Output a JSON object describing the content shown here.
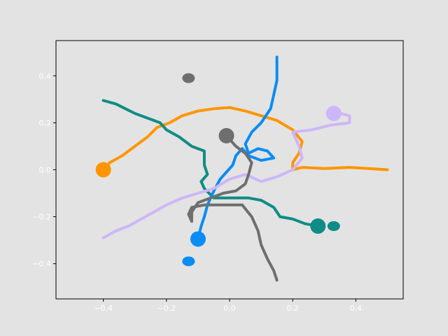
{
  "chart_data": {
    "type": "line",
    "title": "",
    "xlabel": "",
    "ylabel": "",
    "xlim": [
      -0.55,
      0.55
    ],
    "ylim": [
      -0.55,
      0.55
    ],
    "xticks": [
      -0.4,
      -0.2,
      0.0,
      0.2,
      0.4
    ],
    "yticks": [
      -0.4,
      -0.2,
      0.0,
      0.2,
      0.4
    ],
    "xtick_labels": [
      "−0.4",
      "−0.2",
      "0.0",
      "0.2",
      "0.4"
    ],
    "ytick_labels": [
      "−0.4",
      "−0.2",
      "0.0",
      "0.2",
      "0.4"
    ],
    "grid": false,
    "background": "#e3e3e3",
    "plot_background": "#e3e3e3",
    "series": [
      {
        "color": "#ff9500",
        "start": [
          -0.4,
          0.0
        ],
        "end_marker": null,
        "points": [
          [
            -0.4,
            0.0
          ],
          [
            -0.38,
            0.03
          ],
          [
            -0.34,
            0.06
          ],
          [
            -0.3,
            0.1
          ],
          [
            -0.26,
            0.14
          ],
          [
            -0.23,
            0.18
          ],
          [
            -0.19,
            0.2
          ],
          [
            -0.15,
            0.23
          ],
          [
            -0.1,
            0.25
          ],
          [
            -0.05,
            0.26
          ],
          [
            0.0,
            0.265
          ],
          [
            0.05,
            0.25
          ],
          [
            0.1,
            0.23
          ],
          [
            0.15,
            0.21
          ],
          [
            0.2,
            0.17
          ],
          [
            0.23,
            0.12
          ],
          [
            0.22,
            0.07
          ],
          [
            0.2,
            0.03
          ],
          [
            0.2,
            0.0
          ],
          [
            0.23,
            0.01
          ],
          [
            0.3,
            0.005
          ],
          [
            0.38,
            0.01
          ],
          [
            0.44,
            0.005
          ],
          [
            0.5,
            0.0
          ]
        ]
      },
      {
        "color": "#0f8c85",
        "start": [
          0.28,
          -0.24
        ],
        "end_marker": [
          0.33,
          -0.24
        ],
        "points": [
          [
            -0.4,
            0.295
          ],
          [
            -0.36,
            0.28
          ],
          [
            -0.33,
            0.26
          ],
          [
            -0.3,
            0.24
          ],
          [
            -0.26,
            0.22
          ],
          [
            -0.22,
            0.2
          ],
          [
            -0.2,
            0.17
          ],
          [
            -0.16,
            0.14
          ],
          [
            -0.12,
            0.1
          ],
          [
            -0.08,
            0.08
          ],
          [
            -0.08,
            0.02
          ],
          [
            -0.07,
            -0.02
          ],
          [
            -0.09,
            -0.05
          ],
          [
            -0.08,
            -0.08
          ],
          [
            -0.05,
            -0.12
          ],
          [
            -0.02,
            -0.12
          ],
          [
            0.02,
            -0.12
          ],
          [
            0.06,
            -0.12
          ],
          [
            0.1,
            -0.13
          ],
          [
            0.14,
            -0.16
          ],
          [
            0.16,
            -0.2
          ],
          [
            0.2,
            -0.21
          ],
          [
            0.24,
            -0.23
          ],
          [
            0.28,
            -0.24
          ]
        ]
      },
      {
        "color": "#0a8cf5",
        "start": [
          -0.1,
          -0.295
        ],
        "end_marker": [
          -0.13,
          -0.39
        ],
        "points": [
          [
            -0.1,
            -0.295
          ],
          [
            -0.09,
            -0.24
          ],
          [
            -0.08,
            -0.2
          ],
          [
            -0.07,
            -0.15
          ],
          [
            -0.05,
            -0.09
          ],
          [
            -0.03,
            -0.04
          ],
          [
            -0.01,
            -0.01
          ],
          [
            0.01,
            0.02
          ],
          [
            0.02,
            0.06
          ],
          [
            0.04,
            0.09
          ],
          [
            0.06,
            0.06
          ],
          [
            0.1,
            0.04
          ],
          [
            0.14,
            0.05
          ],
          [
            0.12,
            0.08
          ],
          [
            0.09,
            0.09
          ],
          [
            0.06,
            0.07
          ],
          [
            0.05,
            0.11
          ],
          [
            0.07,
            0.16
          ],
          [
            0.1,
            0.2
          ],
          [
            0.13,
            0.26
          ],
          [
            0.14,
            0.32
          ],
          [
            0.15,
            0.38
          ],
          [
            0.15,
            0.48
          ]
        ]
      },
      {
        "color": "#cdb6f7",
        "start": [
          0.33,
          0.24
        ],
        "end_marker": null,
        "points": [
          [
            -0.4,
            -0.29
          ],
          [
            -0.36,
            -0.26
          ],
          [
            -0.32,
            -0.24
          ],
          [
            -0.28,
            -0.21
          ],
          [
            -0.24,
            -0.18
          ],
          [
            -0.2,
            -0.15
          ],
          [
            -0.15,
            -0.12
          ],
          [
            -0.1,
            -0.1
          ],
          [
            -0.05,
            -0.08
          ],
          [
            0.0,
            -0.04
          ],
          [
            0.05,
            -0.02
          ],
          [
            0.1,
            -0.05
          ],
          [
            0.15,
            -0.03
          ],
          [
            0.2,
            0.0
          ],
          [
            0.23,
            0.05
          ],
          [
            0.22,
            0.1
          ],
          [
            0.2,
            0.16
          ],
          [
            0.26,
            0.17
          ],
          [
            0.32,
            0.19
          ],
          [
            0.38,
            0.2
          ],
          [
            0.38,
            0.23
          ],
          [
            0.35,
            0.24
          ],
          [
            0.33,
            0.24
          ]
        ]
      },
      {
        "color": "#6e6e6e",
        "start": [
          -0.01,
          0.145
        ],
        "end_marker": [
          -0.13,
          0.39
        ],
        "points": [
          [
            -0.01,
            0.145
          ],
          [
            0.02,
            0.1
          ],
          [
            0.05,
            0.07
          ],
          [
            0.07,
            0.03
          ],
          [
            0.06,
            -0.02
          ],
          [
            0.05,
            -0.06
          ],
          [
            0.02,
            -0.09
          ],
          [
            -0.02,
            -0.1
          ],
          [
            -0.06,
            -0.12
          ],
          [
            -0.1,
            -0.14
          ],
          [
            -0.12,
            -0.18
          ],
          [
            -0.12,
            -0.22
          ],
          [
            -0.13,
            -0.19
          ],
          [
            -0.12,
            -0.16
          ],
          [
            -0.08,
            -0.15
          ],
          [
            -0.04,
            -0.15
          ],
          [
            0.0,
            -0.15
          ],
          [
            0.04,
            -0.15
          ],
          [
            0.07,
            -0.2
          ],
          [
            0.09,
            -0.26
          ],
          [
            0.1,
            -0.32
          ],
          [
            0.12,
            -0.38
          ],
          [
            0.14,
            -0.43
          ],
          [
            0.15,
            -0.47
          ]
        ]
      }
    ]
  }
}
